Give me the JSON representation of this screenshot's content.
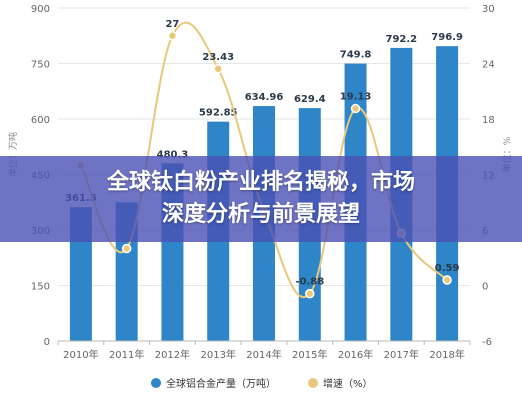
{
  "chart_data": {
    "type": "bar",
    "categories": [
      "2010年",
      "2011年",
      "2012年",
      "2013年",
      "2014年",
      "2015年",
      "2016年",
      "2017年",
      "2018年"
    ],
    "series": [
      {
        "name": "全球铝合金产量（万吨）",
        "type": "bar",
        "axis": "left",
        "color": "#2e86c8",
        "values": [
          361.5,
          375,
          480.3,
          592.85,
          634.96,
          629.4,
          749.8,
          792.2,
          796.9
        ],
        "labels": [
          "361.5",
          "",
          "480.3",
          "592.85",
          "634.96",
          "629.4",
          "749.8",
          "792.2",
          "796.9"
        ]
      },
      {
        "name": "增速（%）",
        "type": "line",
        "axis": "right",
        "color": "#e8c87a",
        "values": [
          13,
          4,
          27,
          23.43,
          8,
          -0.88,
          19.13,
          5.65,
          0.59
        ],
        "labels": [
          "",
          "",
          "27",
          "23.43",
          "",
          "-0.88",
          "19.13",
          "",
          "0.59"
        ]
      }
    ],
    "ylabel": "单位：万吨",
    "y2label": "单位：%",
    "ylim": [
      0,
      900
    ],
    "y2lim": [
      -6,
      30
    ],
    "yticks": [
      "0",
      "150",
      "300",
      "450",
      "600",
      "750",
      "900"
    ],
    "y2ticks": [
      "-6",
      "0",
      "6",
      "12",
      "18",
      "24",
      "30"
    ],
    "grid": true,
    "legend_position": "bottom"
  },
  "overlay": {
    "title_line1": "全球钛白粉产业排名揭秘，市场",
    "title_line2": "深度分析与前景展望"
  },
  "colors": {
    "bar": "#2e86c8",
    "line": "#e8c87a",
    "banner": "#4a50b4"
  }
}
